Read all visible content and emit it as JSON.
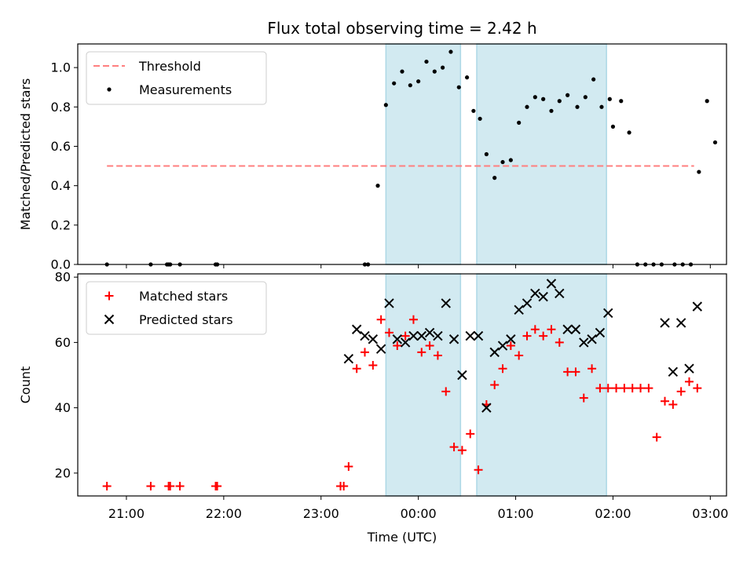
{
  "chart_data": [
    {
      "type": "scatter",
      "title": "Flux total observing time = 2.42 h",
      "xlabel": "",
      "ylabel": "Matched/Predicted stars",
      "xlim": [
        "20:30",
        "03:10"
      ],
      "ylim": [
        0,
        1.12
      ],
      "yticks": [
        "0.0",
        "0.2",
        "0.4",
        "0.6",
        "0.8",
        "1.0"
      ],
      "shaded_intervals": [
        [
          "23:40",
          "00:26"
        ],
        [
          "00:36",
          "01:56"
        ]
      ],
      "shade_color": "#add8e6",
      "legend": {
        "placement": "top-left"
      },
      "series": [
        {
          "name": "Threshold",
          "style": "dashed-line",
          "color": "#ff7f7f",
          "x": [
            "20:48",
            "02:50"
          ],
          "y": [
            0.5,
            0.5
          ]
        },
        {
          "name": "Measurements",
          "style": "dot",
          "color": "#000000",
          "x": [
            "20:48",
            "21:15",
            "21:25",
            "21:26",
            "21:27",
            "21:33",
            "21:55",
            "21:56",
            "23:27",
            "23:29",
            "23:35",
            "23:40",
            "23:45",
            "23:50",
            "23:55",
            "00:00",
            "00:05",
            "00:10",
            "00:15",
            "00:20",
            "00:25",
            "00:30",
            "00:34",
            "00:38",
            "00:42",
            "00:47",
            "00:52",
            "00:57",
            "01:02",
            "01:07",
            "01:12",
            "01:17",
            "01:22",
            "01:27",
            "01:32",
            "01:38",
            "01:43",
            "01:48",
            "01:53",
            "01:58",
            "02:00",
            "02:05",
            "02:10",
            "02:15",
            "02:20",
            "02:25",
            "02:30",
            "02:38",
            "02:43",
            "02:48",
            "02:53",
            "02:58",
            "03:03"
          ],
          "y": [
            0.0,
            0.0,
            0.0,
            0.0,
            0.0,
            0.0,
            0.0,
            0.0,
            0.0,
            0.0,
            0.4,
            0.81,
            0.92,
            0.98,
            0.91,
            0.93,
            1.03,
            0.98,
            1.0,
            1.08,
            0.9,
            0.95,
            0.78,
            0.74,
            0.56,
            0.44,
            0.52,
            0.53,
            0.72,
            0.8,
            0.85,
            0.84,
            0.78,
            0.83,
            0.86,
            0.8,
            0.85,
            0.94,
            0.8,
            0.84,
            0.7,
            0.83,
            0.67,
            0.0,
            0.0,
            0.0,
            0.0,
            0.0,
            0.0,
            0.0,
            0.47,
            0.83,
            0.62
          ]
        }
      ]
    },
    {
      "type": "scatter",
      "title": "",
      "xlabel": "Time (UTC)",
      "ylabel": "Count",
      "xlim": [
        "20:30",
        "03:10"
      ],
      "ylim": [
        13,
        81
      ],
      "yticks": [
        "20",
        "40",
        "60",
        "80"
      ],
      "xticks": [
        "21:00",
        "22:00",
        "23:00",
        "00:00",
        "01:00",
        "02:00",
        "03:00"
      ],
      "shaded_intervals": [
        [
          "23:40",
          "00:26"
        ],
        [
          "00:36",
          "01:56"
        ]
      ],
      "shade_color": "#add8e6",
      "legend": {
        "placement": "top-left"
      },
      "series": [
        {
          "name": "Matched stars",
          "marker": "plus",
          "color": "#ff0000",
          "x": [
            "20:48",
            "21:15",
            "21:26",
            "21:27",
            "21:33",
            "21:55",
            "21:56",
            "23:12",
            "23:14",
            "23:17",
            "23:22",
            "23:27",
            "23:32",
            "23:37",
            "23:42",
            "23:47",
            "23:52",
            "23:57",
            "00:02",
            "00:07",
            "00:12",
            "00:17",
            "00:22",
            "00:27",
            "00:32",
            "00:37",
            "00:42",
            "00:47",
            "00:52",
            "00:57",
            "01:02",
            "01:07",
            "01:12",
            "01:17",
            "01:22",
            "01:27",
            "01:32",
            "01:37",
            "01:42",
            "01:47",
            "01:52",
            "01:57",
            "02:02",
            "02:07",
            "02:12",
            "02:17",
            "02:22",
            "02:27",
            "02:32",
            "02:37",
            "02:42",
            "02:47",
            "02:52"
          ],
          "y": [
            16,
            16,
            16,
            16,
            16,
            16,
            16,
            16,
            16,
            22,
            52,
            57,
            53,
            67,
            63,
            59,
            62,
            67,
            57,
            59,
            56,
            45,
            28,
            27,
            32,
            21,
            41,
            47,
            52,
            59,
            56,
            62,
            64,
            62,
            64,
            60,
            51,
            51,
            43,
            52,
            46,
            46,
            46,
            46,
            46,
            46,
            46,
            31,
            42,
            41,
            45,
            48,
            46
          ]
        },
        {
          "name": "Predicted stars",
          "marker": "x",
          "color": "#000000",
          "x": [
            "23:17",
            "23:22",
            "23:27",
            "23:32",
            "23:37",
            "23:42",
            "23:47",
            "23:52",
            "23:57",
            "00:02",
            "00:07",
            "00:12",
            "00:17",
            "00:22",
            "00:27",
            "00:32",
            "00:37",
            "00:42",
            "00:47",
            "00:52",
            "00:57",
            "01:02",
            "01:07",
            "01:12",
            "01:17",
            "01:22",
            "01:27",
            "01:32",
            "01:37",
            "01:42",
            "01:47",
            "01:52",
            "01:57",
            "02:32",
            "02:37",
            "02:42",
            "02:47",
            "02:52"
          ],
          "y": [
            55,
            64,
            62,
            61,
            58,
            72,
            61,
            60,
            62,
            62,
            63,
            62,
            72,
            61,
            50,
            62,
            62,
            40,
            57,
            59,
            61,
            70,
            72,
            75,
            74,
            78,
            75,
            64,
            64,
            60,
            61,
            63,
            69,
            66,
            51,
            66,
            52,
            71
          ]
        }
      ]
    }
  ]
}
